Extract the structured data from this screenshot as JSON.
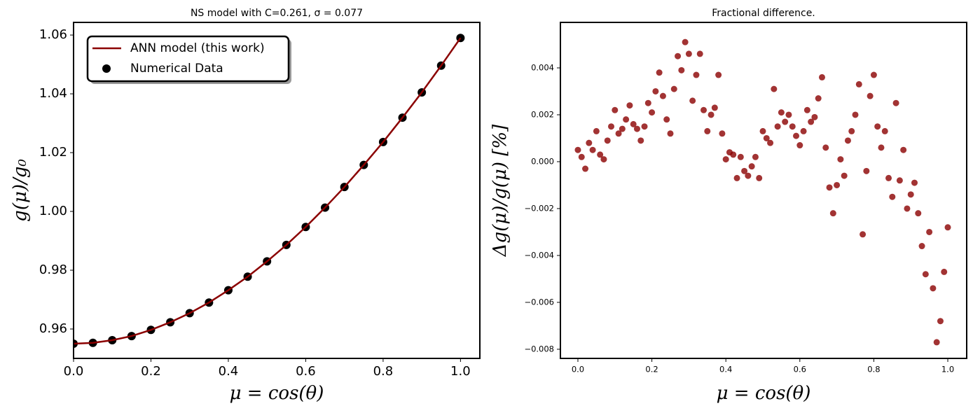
{
  "chart_data": [
    {
      "type": "line",
      "title": "NS model with C=0.261, σ = 0.077",
      "x_label": "μ = cos(θ)",
      "y_label": "g(μ)/g₀",
      "x": [
        0,
        0.05,
        0.1,
        0.15,
        0.2,
        0.25,
        0.3,
        0.35,
        0.4,
        0.45,
        0.5,
        0.55,
        0.6,
        0.65,
        0.7,
        0.75,
        0.8,
        0.85,
        0.9,
        0.95,
        1.0
      ],
      "series": [
        {
          "name": "ANN model (this work)",
          "color": "#8b0000",
          "style": "line",
          "values": [
            0.955,
            0.9553,
            0.9562,
            0.9576,
            0.9597,
            0.9623,
            0.9654,
            0.969,
            0.9732,
            0.9778,
            0.983,
            0.9886,
            0.9947,
            1.0013,
            1.0083,
            1.0158,
            1.0236,
            1.0319,
            1.0405,
            1.0496,
            1.059
          ]
        },
        {
          "name": "Numerical Data",
          "color": "#000000",
          "style": "scatter",
          "values": [
            0.955,
            0.9553,
            0.9562,
            0.9576,
            0.9597,
            0.9623,
            0.9654,
            0.969,
            0.9732,
            0.9778,
            0.983,
            0.9886,
            0.9947,
            1.0013,
            1.0083,
            1.0158,
            1.0236,
            1.0319,
            1.0405,
            1.0496,
            1.059
          ]
        }
      ],
      "xlim": [
        0,
        1.05
      ],
      "ylim": [
        0.95,
        1.0643
      ],
      "xticks": [
        {
          "value": 0,
          "label": "0.0"
        },
        0.2,
        0.4,
        0.6,
        0.8,
        {
          "value": 1,
          "label": "1.0"
        }
      ],
      "yticks": [
        0.96,
        0.98,
        {
          "value": 1,
          "label": "1.00"
        },
        1.02,
        1.04,
        1.06
      ],
      "legend": "upper left"
    },
    {
      "type": "scatter",
      "title": "Fractional difference.",
      "x_label": "μ = cos(θ)",
      "y_label": "Δg(μ)/g(μ)  [%]",
      "x": [
        0,
        0.01,
        0.02,
        0.03,
        0.04,
        0.05,
        0.06,
        0.07,
        0.08,
        0.09,
        0.1,
        0.11,
        0.12,
        0.13,
        0.14,
        0.15,
        0.16,
        0.17,
        0.18,
        0.19,
        0.2,
        0.21,
        0.22,
        0.23,
        0.24,
        0.25,
        0.26,
        0.27,
        0.28,
        0.29,
        0.3,
        0.31,
        0.32,
        0.33,
        0.34,
        0.35,
        0.36,
        0.37,
        0.38,
        0.39,
        0.4,
        0.41,
        0.42,
        0.43,
        0.44,
        0.45,
        0.46,
        0.47,
        0.48,
        0.49,
        0.5,
        0.51,
        0.52,
        0.53,
        0.54,
        0.55,
        0.56,
        0.57,
        0.58,
        0.59,
        0.6,
        0.61,
        0.62,
        0.63,
        0.64,
        0.65,
        0.66,
        0.67,
        0.68,
        0.69,
        0.7,
        0.71,
        0.72,
        0.73,
        0.74,
        0.75,
        0.76,
        0.77,
        0.78,
        0.79,
        0.8,
        0.81,
        0.82,
        0.83,
        0.84,
        0.85,
        0.86,
        0.87,
        0.88,
        0.89,
        0.9,
        0.91,
        0.92,
        0.93,
        0.94,
        0.95,
        0.96,
        0.97,
        0.98,
        0.99,
        1.0
      ],
      "series": [
        {
          "color": "#8b0000",
          "values": [
            0.0005,
            0.0002,
            -0.0003,
            0.0008,
            0.0005,
            0.0013,
            0.0003,
            0.0001,
            0.0009,
            0.0015,
            0.0022,
            0.0012,
            0.0014,
            0.0018,
            0.0024,
            0.0016,
            0.0014,
            0.0009,
            0.0015,
            0.0025,
            0.0021,
            0.003,
            0.0038,
            0.0028,
            0.0018,
            0.0012,
            0.0031,
            0.0045,
            0.0039,
            0.0051,
            0.0046,
            0.0026,
            0.0037,
            0.0046,
            0.0022,
            0.0013,
            0.002,
            0.0023,
            0.0037,
            0.0012,
            0.0001,
            0.0004,
            0.0003,
            -0.0007,
            0.0002,
            -0.0004,
            -0.0006,
            -0.0002,
            0.0002,
            -0.0007,
            0.0013,
            0.001,
            0.0008,
            0.0031,
            0.0015,
            0.0021,
            0.0017,
            0.002,
            0.0015,
            0.0011,
            0.0007,
            0.0013,
            0.0022,
            0.0017,
            0.0019,
            0.0027,
            0.0036,
            0.0006,
            -0.0011,
            -0.0022,
            -0.001,
            0.0001,
            -0.0006,
            0.0009,
            0.0013,
            0.002,
            0.0033,
            -0.0031,
            -0.0004,
            0.0028,
            0.0037,
            0.0015,
            0.0006,
            0.0013,
            -0.0007,
            -0.0015,
            0.0025,
            -0.0008,
            0.0005,
            -0.002,
            -0.0014,
            -0.0009,
            -0.0022,
            -0.0036,
            -0.0048,
            -0.003,
            -0.0054,
            -0.0077,
            -0.0068,
            -0.0047,
            -0.0028
          ]
        }
      ],
      "xlim": [
        -0.0473,
        1.0511
      ],
      "ylim": [
        -0.00839,
        0.00594
      ],
      "xticks": [
        {
          "value": 0,
          "label": "0.0"
        },
        0.2,
        0.4,
        0.6,
        0.8,
        {
          "value": 1,
          "label": "1.0"
        }
      ],
      "yticks": [
        {
          "value": -0.008,
          "label": "−0.008"
        },
        {
          "value": -0.006,
          "label": "−0.006"
        },
        {
          "value": -0.004,
          "label": "−0.004"
        },
        {
          "value": -0.002,
          "label": "−0.002"
        },
        {
          "value": 0,
          "label": "0.000"
        },
        {
          "value": 0.002,
          "label": "0.002"
        },
        {
          "value": 0.004,
          "label": "0.004"
        }
      ]
    }
  ]
}
